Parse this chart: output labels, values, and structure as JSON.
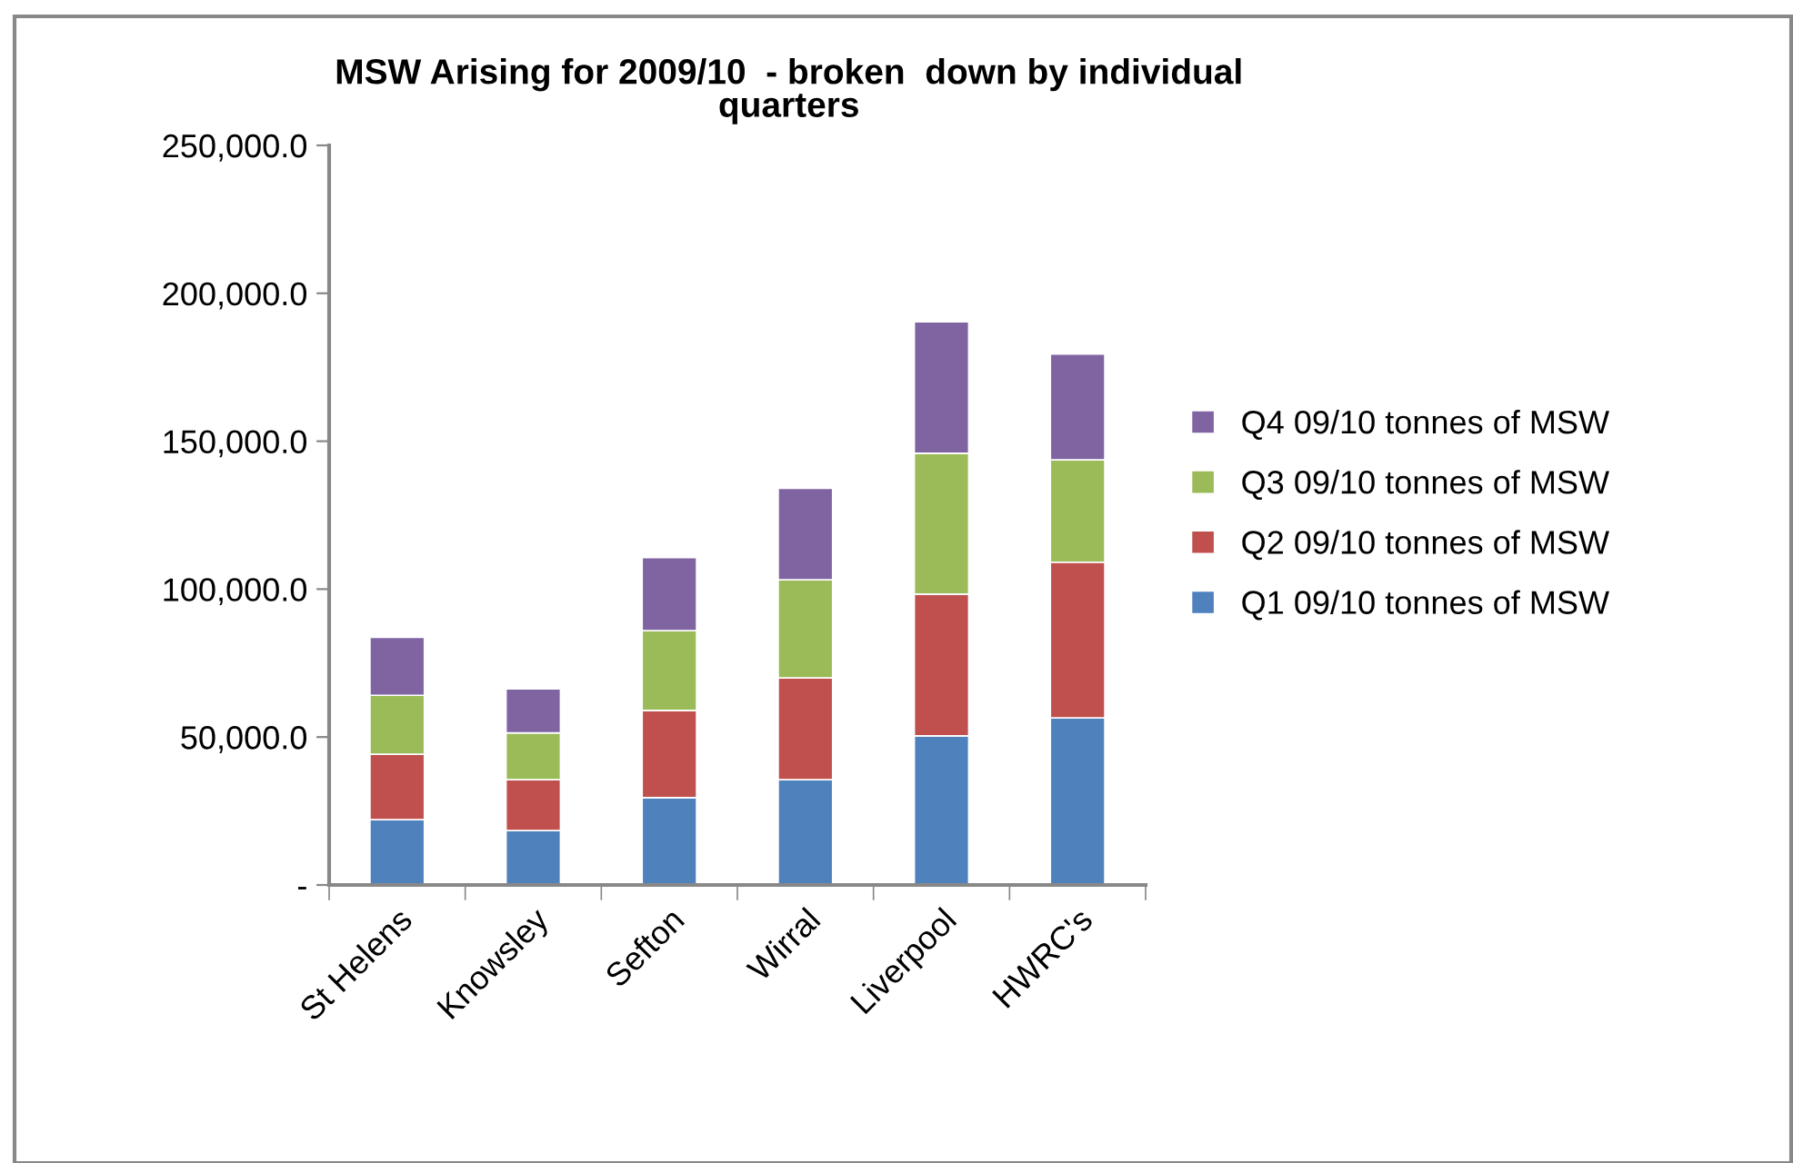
{
  "chart_data": {
    "type": "bar",
    "stacked": true,
    "title": "MSW Arising for 2009/10  - broken  down by individual\nquarters",
    "categories": [
      "St Helens",
      "Knowsley",
      "Sefton",
      "Wirral",
      "Liverpool",
      "HWRC's"
    ],
    "series": [
      {
        "name": "Q1 09/10 tonnes of MSW",
        "color": "#4f81bd",
        "values": [
          22100,
          18400,
          29500,
          35600,
          50400,
          56500
        ]
      },
      {
        "name": "Q2 09/10 tonnes of MSW",
        "color": "#c0504d",
        "values": [
          22100,
          17200,
          29500,
          34400,
          47900,
          52600
        ]
      },
      {
        "name": "Q3 09/10 tonnes of MSW",
        "color": "#9bbb59",
        "values": [
          19900,
          15800,
          27000,
          33200,
          47600,
          34600
        ]
      },
      {
        "name": "Q4 09/10 tonnes of MSW",
        "color": "#8064a2",
        "values": [
          19600,
          14900,
          24700,
          30900,
          44500,
          35800
        ]
      }
    ],
    "ylim": [
      0,
      250000
    ],
    "yticks": [
      {
        "value": 0,
        "label": "-"
      },
      {
        "value": 50000,
        "label": "50,000.0"
      },
      {
        "value": 100000,
        "label": "100,000.0"
      },
      {
        "value": 150000,
        "label": "150,000.0"
      },
      {
        "value": 200000,
        "label": "200,000.0"
      },
      {
        "value": 250000,
        "label": "250,000.0"
      }
    ],
    "legend": "right",
    "grid": false
  }
}
